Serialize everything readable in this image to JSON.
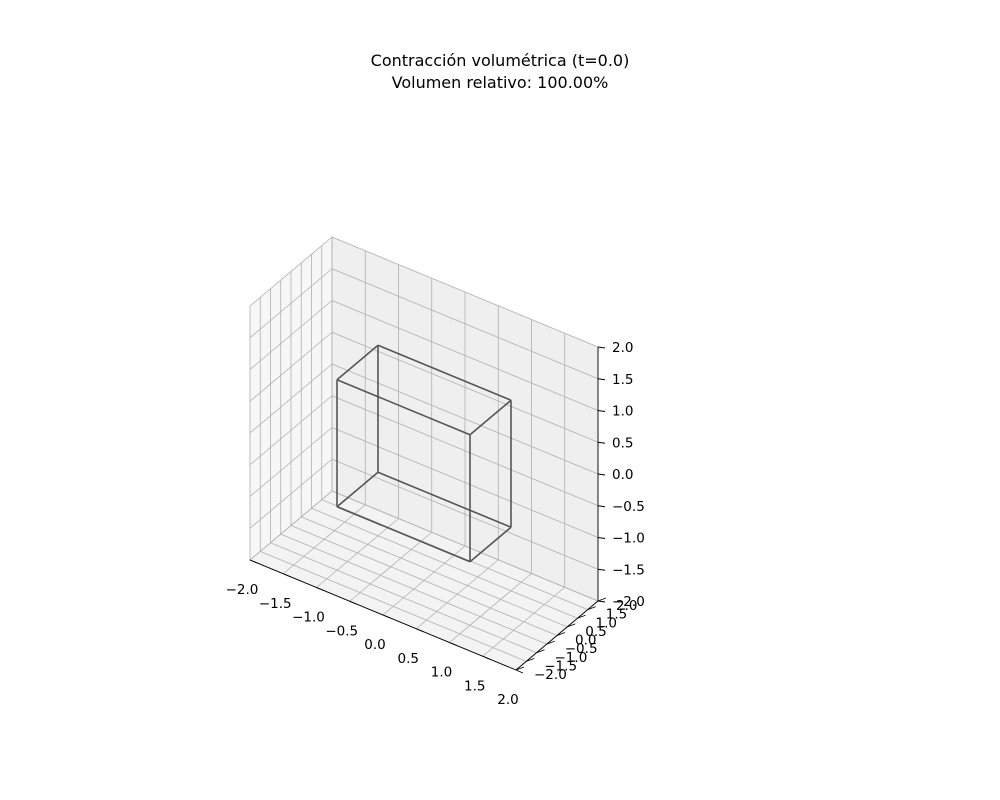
{
  "chart_data": {
    "type": "3d-wireframe",
    "title": "Contracción volumétrica (t=0.0)",
    "subtitle": "Volumen relativo: 100.00%",
    "xlabel": "",
    "ylabel": "",
    "zlabel": "",
    "xlim": [
      -2.0,
      2.0
    ],
    "ylim": [
      -2.0,
      2.0
    ],
    "zlim": [
      -2.0,
      2.0
    ],
    "grid": true,
    "x_ticks": [
      "−2.0",
      "−1.5",
      "−1.0",
      "−0.5",
      "0.0",
      "0.5",
      "1.0",
      "1.5",
      "2.0"
    ],
    "y_ticks": [
      "−2.0",
      "−1.5",
      "−1.0",
      "−0.5",
      "0.0",
      "0.5",
      "1.0",
      "1.5",
      "2.0"
    ],
    "z_ticks": [
      "−2.0",
      "−1.5",
      "−1.0",
      "−0.5",
      "0.0",
      "0.5",
      "1.0",
      "1.5",
      "2.0"
    ],
    "cube": {
      "color": "#555555",
      "vertices": [
        [
          -1,
          -1,
          -1
        ],
        [
          1,
          -1,
          -1
        ],
        [
          1,
          1,
          -1
        ],
        [
          -1,
          1,
          -1
        ],
        [
          -1,
          -1,
          1
        ],
        [
          1,
          -1,
          1
        ],
        [
          1,
          1,
          1
        ],
        [
          -1,
          1,
          1
        ]
      ],
      "edges": [
        [
          0,
          1
        ],
        [
          1,
          2
        ],
        [
          2,
          3
        ],
        [
          3,
          0
        ],
        [
          4,
          5
        ],
        [
          5,
          6
        ],
        [
          6,
          7
        ],
        [
          7,
          4
        ],
        [
          0,
          4
        ],
        [
          1,
          5
        ],
        [
          2,
          6
        ],
        [
          3,
          7
        ]
      ]
    }
  }
}
